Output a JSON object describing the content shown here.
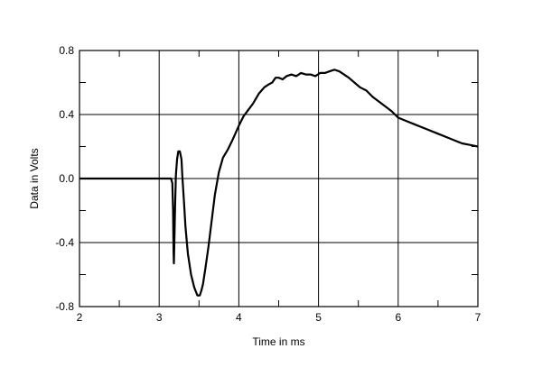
{
  "chart_data": {
    "type": "line",
    "title": "",
    "xlabel": "Time in ms",
    "ylabel": "Data in Volts",
    "xlim": [
      2,
      7
    ],
    "ylim": [
      -0.8,
      0.8
    ],
    "x_ticks": [
      2,
      3,
      4,
      5,
      6,
      7
    ],
    "x_tick_labels": [
      "2",
      "3",
      "4",
      "5",
      "6",
      "7"
    ],
    "y_ticks": [
      -0.8,
      -0.4,
      0.0,
      0.4,
      0.8
    ],
    "y_tick_labels": [
      "-0.8",
      "-0.4",
      "0.0",
      "0.4",
      "0.8"
    ],
    "grid": true,
    "line_color": "#000000",
    "series": [
      {
        "x": [
          2.0,
          2.5,
          3.0,
          3.12,
          3.15,
          3.165,
          3.175,
          3.18,
          3.185,
          3.19,
          3.2,
          3.21,
          3.225,
          3.24,
          3.26,
          3.28,
          3.29,
          3.31,
          3.33,
          3.36,
          3.4,
          3.44,
          3.48,
          3.51,
          3.53,
          3.55,
          3.58,
          3.62,
          3.66,
          3.7,
          3.75,
          3.8,
          3.86,
          3.92,
          4.0,
          4.06,
          4.12,
          4.18,
          4.25,
          4.32,
          4.38,
          4.42,
          4.46,
          4.5,
          4.55,
          4.6,
          4.66,
          4.72,
          4.78,
          4.84,
          4.9,
          4.96,
          5.02,
          5.08,
          5.14,
          5.2,
          5.26,
          5.32,
          5.38,
          5.45,
          5.52,
          5.6,
          5.68,
          5.76,
          5.84,
          5.92,
          6.0,
          6.1,
          6.2,
          6.35,
          6.5,
          6.65,
          6.8,
          6.9,
          7.0
        ],
        "y": [
          0.0,
          0.0,
          0.0,
          0.0,
          0.0,
          -0.03,
          -0.2,
          -0.45,
          -0.53,
          -0.4,
          -0.18,
          0.02,
          0.12,
          0.17,
          0.17,
          0.12,
          0.02,
          -0.13,
          -0.3,
          -0.47,
          -0.6,
          -0.68,
          -0.73,
          -0.73,
          -0.7,
          -0.66,
          -0.56,
          -0.42,
          -0.26,
          -0.1,
          0.04,
          0.13,
          0.18,
          0.24,
          0.33,
          0.39,
          0.43,
          0.47,
          0.53,
          0.57,
          0.59,
          0.6,
          0.63,
          0.63,
          0.62,
          0.64,
          0.65,
          0.64,
          0.66,
          0.65,
          0.65,
          0.64,
          0.66,
          0.66,
          0.67,
          0.68,
          0.67,
          0.65,
          0.63,
          0.6,
          0.57,
          0.55,
          0.51,
          0.48,
          0.45,
          0.42,
          0.38,
          0.36,
          0.34,
          0.31,
          0.28,
          0.25,
          0.22,
          0.21,
          0.2
        ]
      }
    ]
  }
}
